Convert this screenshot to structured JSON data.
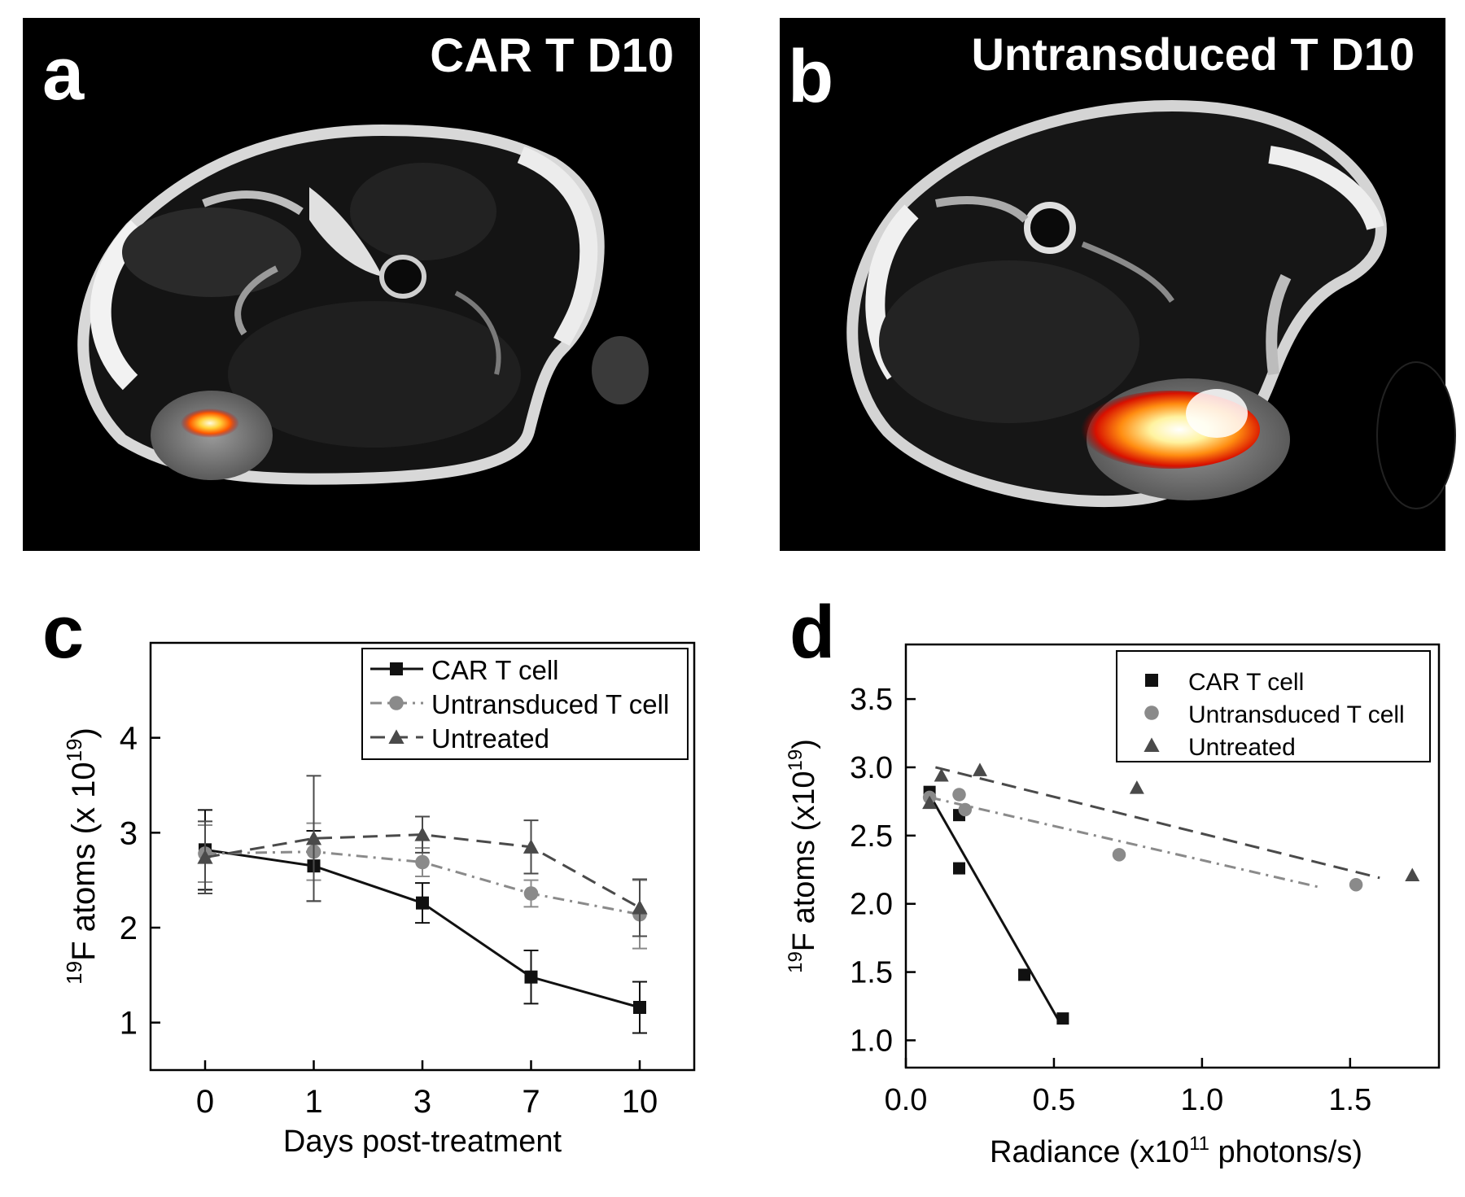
{
  "colors": {
    "car": "#111111",
    "untransduced": "#8a8a8a",
    "untreated": "#4a4a4a",
    "hot_spot_core": "#fffbe0",
    "hot_spot_mid": "#ff7a00",
    "hot_spot_edge": "#c00000"
  },
  "panel_a": {
    "letter": "a",
    "title": "CAR T D10"
  },
  "panel_b": {
    "letter": "b",
    "title": "Untransduced T D10"
  },
  "chart_data": [
    {
      "type": "line",
      "panel": "c",
      "letter": "c",
      "categories": [
        "0",
        "1",
        "3",
        "7",
        "10"
      ],
      "xlabel": "Days post-treatment",
      "ylabel_sup": "19",
      "ylabel_main": "F atoms (x 10",
      "ylabel_exp": "19",
      "ylabel_end": ")",
      "ylim": [
        0.5,
        5.0
      ],
      "yticks": [
        1,
        2,
        3,
        4
      ],
      "yticklabels": [
        "1",
        "2",
        "3",
        "4"
      ],
      "legend_position": "top-right",
      "series": [
        {
          "name": "CAR T cell",
          "values": [
            2.82,
            2.65,
            2.26,
            1.48,
            1.16
          ],
          "errors": [
            0.42,
            0.37,
            0.21,
            0.28,
            0.27
          ],
          "marker": "square",
          "dash": "solid",
          "color_key": "car"
        },
        {
          "name": "Untransduced T cell",
          "values": [
            2.78,
            2.8,
            2.69,
            2.36,
            2.14
          ],
          "errors": [
            0.3,
            0.3,
            0.15,
            0.14,
            0.36
          ],
          "marker": "circle",
          "dash": "dashdot",
          "color_key": "untransduced"
        },
        {
          "name": "Untreated",
          "values": [
            2.74,
            2.94,
            2.98,
            2.85,
            2.21
          ],
          "errors": [
            0.38,
            0.66,
            0.19,
            0.28,
            0.3
          ],
          "marker": "triangle",
          "dash": "dash",
          "color_key": "untreated"
        }
      ]
    },
    {
      "type": "scatter",
      "panel": "d",
      "letter": "d",
      "xlabel_main": "Radiance (x10",
      "xlabel_exp": "11",
      "xlabel_end": " photons/s)",
      "ylabel_sup": "19",
      "ylabel_main": "F atoms (x10",
      "ylabel_exp": "19",
      "ylabel_end": ")",
      "xlim": [
        0.0,
        1.8
      ],
      "ylim": [
        0.8,
        3.9
      ],
      "xticks": [
        0.0,
        0.5,
        1.0,
        1.5
      ],
      "xticklabels": [
        "0.0",
        "0.5",
        "1.0",
        "1.5"
      ],
      "yticks": [
        1.0,
        1.5,
        2.0,
        2.5,
        3.0,
        3.5
      ],
      "yticklabels": [
        "1.0",
        "1.5",
        "2.0",
        "2.5",
        "3.0",
        "3.5"
      ],
      "legend_position": "top-right",
      "series": [
        {
          "name": "CAR T cell",
          "x": [
            0.08,
            0.18,
            0.18,
            0.4,
            0.53
          ],
          "y": [
            2.82,
            2.65,
            2.26,
            1.48,
            1.16
          ],
          "marker": "square",
          "color_key": "car",
          "fit": {
            "x": [
              0.08,
              0.52
            ],
            "y": [
              2.8,
              1.13
            ],
            "dash": "solid"
          }
        },
        {
          "name": "Untransduced T cell",
          "x": [
            0.08,
            0.18,
            0.2,
            0.72,
            1.52
          ],
          "y": [
            2.78,
            2.8,
            2.69,
            2.36,
            2.14
          ],
          "marker": "circle",
          "color_key": "untransduced",
          "fit": {
            "x": [
              0.08,
              1.4
            ],
            "y": [
              2.78,
              2.12
            ],
            "dash": "dashdot"
          }
        },
        {
          "name": "Untreated",
          "x": [
            0.08,
            0.12,
            0.25,
            0.78,
            1.71
          ],
          "y": [
            2.74,
            2.94,
            2.98,
            2.85,
            2.21
          ],
          "marker": "triangle",
          "color_key": "untreated",
          "fit": {
            "x": [
              0.1,
              1.6
            ],
            "y": [
              3.0,
              2.19
            ],
            "dash": "dash"
          }
        }
      ]
    }
  ]
}
